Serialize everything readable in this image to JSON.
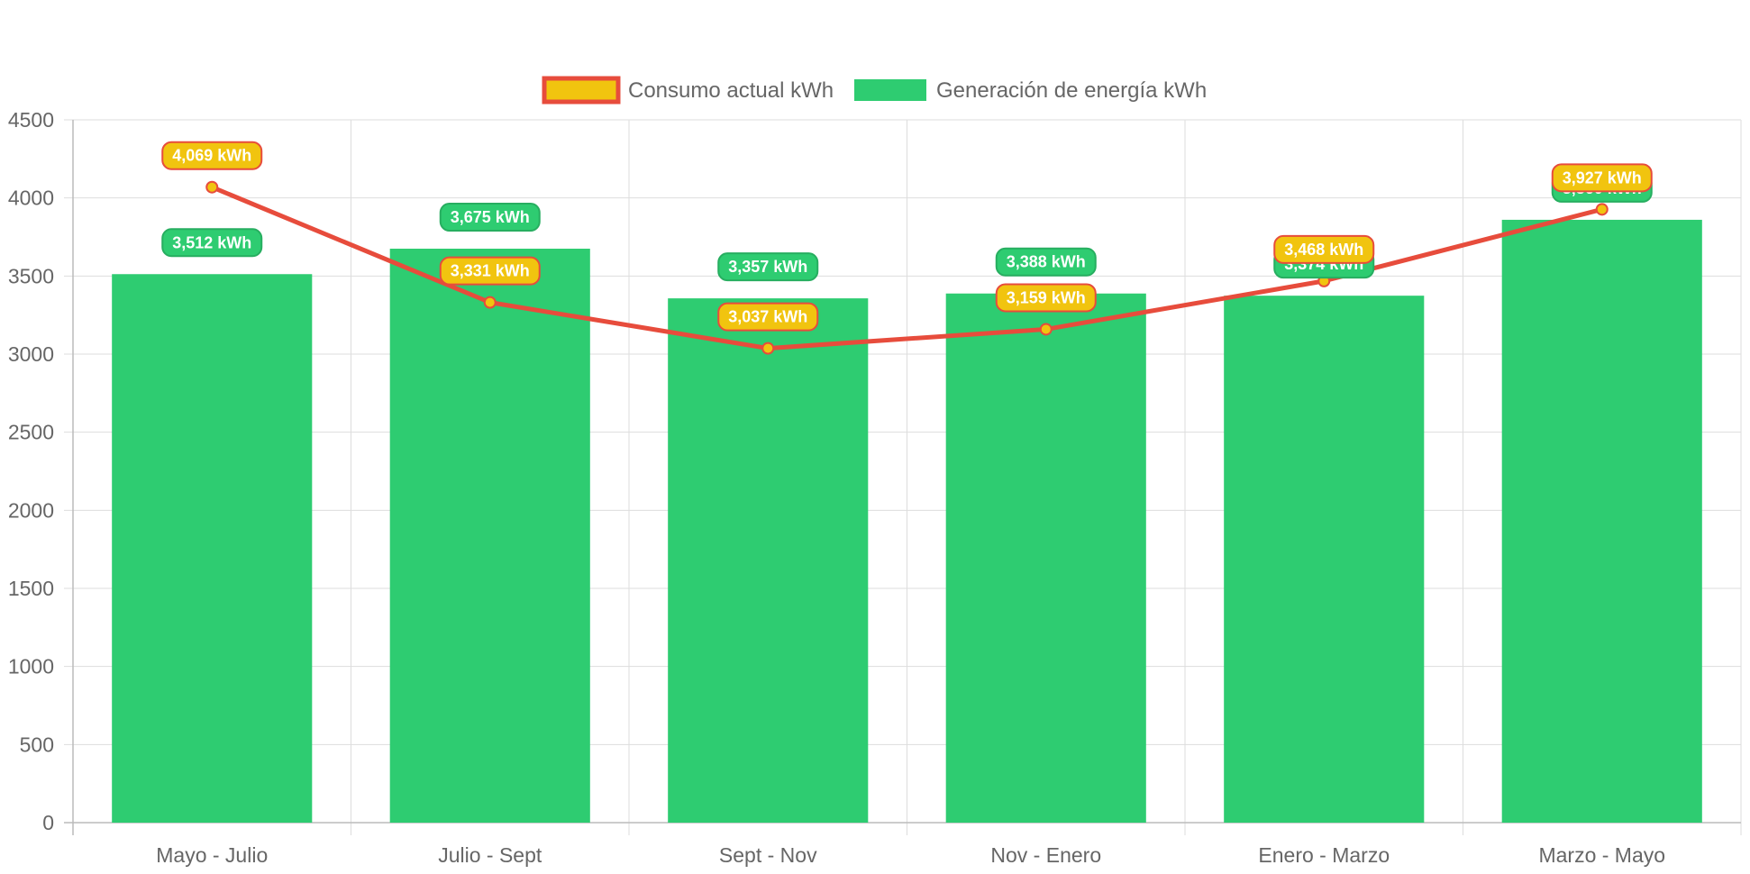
{
  "chart_data": {
    "type": "bar",
    "title": "",
    "xlabel": "",
    "ylabel": "",
    "categories": [
      "Mayo - Julio",
      "Julio - Sept",
      "Sept - Nov",
      "Nov - Enero",
      "Enero - Marzo",
      "Marzo - Mayo"
    ],
    "ylim": [
      0,
      4500
    ],
    "yticks": [
      0,
      500,
      1000,
      1500,
      2000,
      2500,
      3000,
      3500,
      4000,
      4500
    ],
    "grid": true,
    "legend_position": "top-center",
    "value_suffix": " kWh",
    "series": [
      {
        "name": "Consumo actual kWh",
        "type": "line",
        "color": "#e74c3c",
        "fill": "#f1c40f",
        "values": [
          4069,
          3331,
          3037,
          3159,
          3468,
          3927
        ]
      },
      {
        "name": "Generación de energía kWh",
        "type": "bar",
        "color": "#2ecc71",
        "border": "#27ae60",
        "values": [
          3512,
          3675,
          3357,
          3388,
          3374,
          3860
        ]
      }
    ]
  }
}
